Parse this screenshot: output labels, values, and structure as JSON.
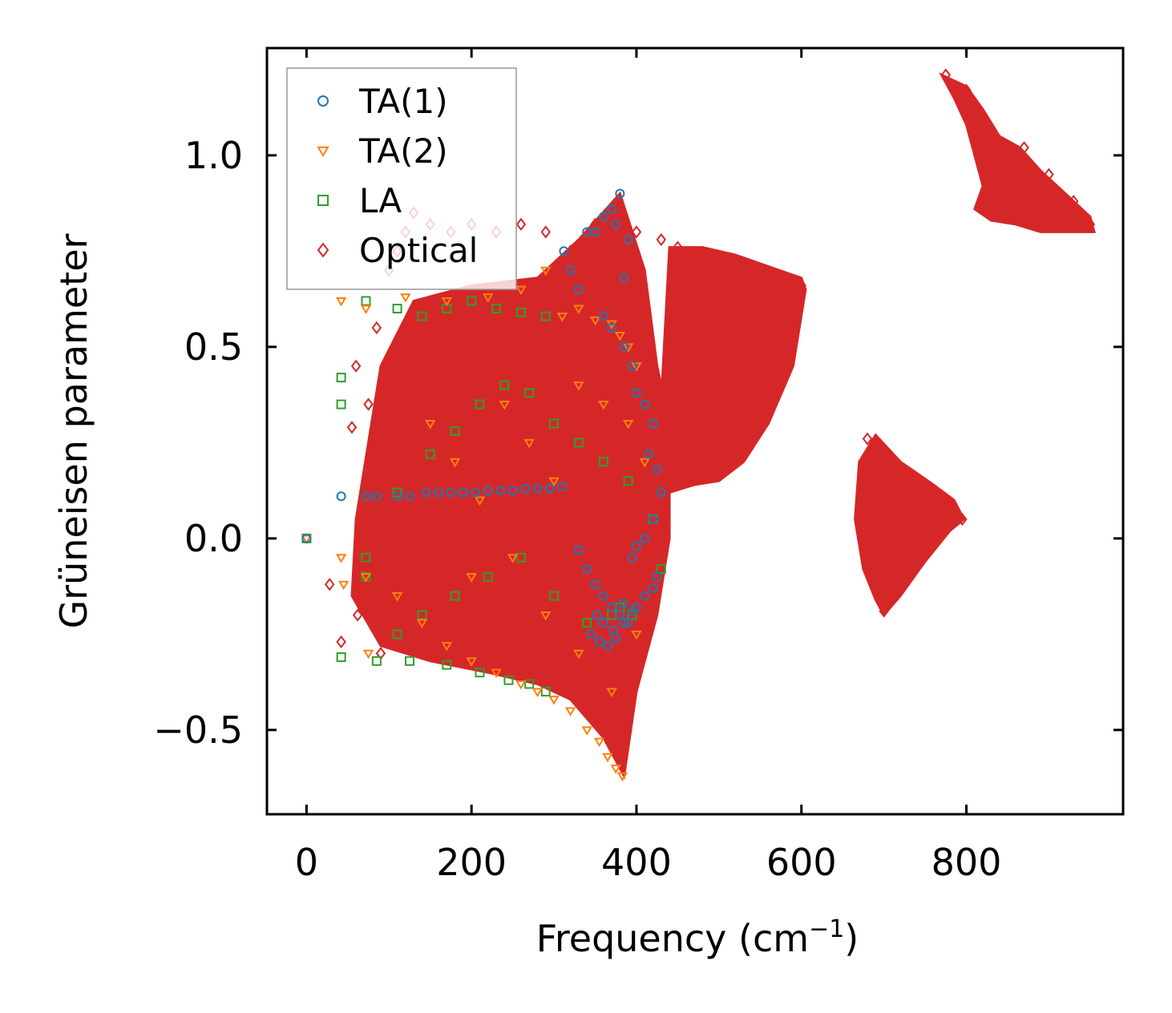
{
  "chart_data": {
    "type": "scatter",
    "xlabel": "Frequency (cm",
    "xlabel_sup": "−1",
    "xlabel_suffix": ")",
    "ylabel": "Grüneisen parameter",
    "xlim": [
      -48,
      990
    ],
    "ylim": [
      -0.72,
      1.28
    ],
    "xticks": [
      0,
      200,
      400,
      600,
      800
    ],
    "xtick_labels": [
      "0",
      "200",
      "400",
      "600",
      "800"
    ],
    "yticks": [
      -0.5,
      0.0,
      0.5,
      1.0
    ],
    "ytick_labels": [
      "−0.5",
      "0.0",
      "0.5",
      "1.0"
    ],
    "legend_position": "upper-left",
    "series": [
      {
        "name": "TA(1)",
        "marker": "circle",
        "color": "#1f77b4",
        "points": [
          [
            0,
            0.0
          ],
          [
            42,
            0.11
          ],
          [
            72,
            0.11
          ],
          [
            85,
            0.11
          ],
          [
            110,
            0.11
          ],
          [
            125,
            0.11
          ],
          [
            145,
            0.12
          ],
          [
            160,
            0.12
          ],
          [
            175,
            0.12
          ],
          [
            190,
            0.12
          ],
          [
            205,
            0.12
          ],
          [
            220,
            0.125
          ],
          [
            235,
            0.125
          ],
          [
            250,
            0.125
          ],
          [
            265,
            0.13
          ],
          [
            280,
            0.13
          ],
          [
            295,
            0.13
          ],
          [
            310,
            0.135
          ],
          [
            312,
            0.75
          ],
          [
            320,
            0.7
          ],
          [
            330,
            0.65
          ],
          [
            340,
            0.8
          ],
          [
            350,
            0.8
          ],
          [
            360,
            0.84
          ],
          [
            370,
            0.86
          ],
          [
            380,
            0.9
          ],
          [
            375,
            0.82
          ],
          [
            390,
            0.78
          ],
          [
            385,
            0.68
          ],
          [
            360,
            0.58
          ],
          [
            370,
            0.55
          ],
          [
            385,
            0.5
          ],
          [
            395,
            0.45
          ],
          [
            400,
            0.38
          ],
          [
            410,
            0.35
          ],
          [
            420,
            0.3
          ],
          [
            415,
            0.22
          ],
          [
            425,
            0.18
          ],
          [
            430,
            0.12
          ],
          [
            420,
            0.05
          ],
          [
            410,
            0.0
          ],
          [
            400,
            -0.02
          ],
          [
            395,
            -0.05
          ],
          [
            330,
            -0.03
          ],
          [
            340,
            -0.08
          ],
          [
            350,
            -0.12
          ],
          [
            360,
            -0.15
          ],
          [
            370,
            -0.18
          ],
          [
            380,
            -0.2
          ],
          [
            390,
            -0.22
          ],
          [
            400,
            -0.18
          ],
          [
            410,
            -0.15
          ],
          [
            425,
            -0.1
          ],
          [
            420,
            -0.13
          ],
          [
            345,
            -0.25
          ],
          [
            355,
            -0.27
          ],
          [
            365,
            -0.28
          ],
          [
            375,
            -0.26
          ],
          [
            385,
            -0.22
          ],
          [
            395,
            -0.19
          ],
          [
            360,
            -0.22
          ],
          [
            372,
            -0.24
          ],
          [
            384,
            -0.17
          ],
          [
            352,
            -0.2
          ]
        ]
      },
      {
        "name": "TA(2)",
        "marker": "triangle-down",
        "color": "#ff7f0e",
        "points": [
          [
            0,
            0.0
          ],
          [
            42,
            0.62
          ],
          [
            72,
            0.6
          ],
          [
            120,
            0.63
          ],
          [
            170,
            0.62
          ],
          [
            220,
            0.63
          ],
          [
            260,
            0.65
          ],
          [
            290,
            0.7
          ],
          [
            310,
            0.58
          ],
          [
            330,
            0.6
          ],
          [
            350,
            0.57
          ],
          [
            370,
            0.56
          ],
          [
            380,
            0.53
          ],
          [
            390,
            0.5
          ],
          [
            400,
            0.45
          ],
          [
            42,
            -0.05
          ],
          [
            72,
            -0.1
          ],
          [
            110,
            -0.15
          ],
          [
            140,
            -0.22
          ],
          [
            170,
            -0.28
          ],
          [
            200,
            -0.32
          ],
          [
            230,
            -0.35
          ],
          [
            260,
            -0.38
          ],
          [
            280,
            -0.4
          ],
          [
            300,
            -0.42
          ],
          [
            320,
            -0.45
          ],
          [
            340,
            -0.5
          ],
          [
            355,
            -0.53
          ],
          [
            365,
            -0.57
          ],
          [
            375,
            -0.6
          ],
          [
            383,
            -0.62
          ],
          [
            75,
            -0.3
          ],
          [
            45,
            -0.12
          ],
          [
            150,
            0.3
          ],
          [
            180,
            0.2
          ],
          [
            210,
            0.1
          ],
          [
            240,
            0.35
          ],
          [
            270,
            0.25
          ],
          [
            300,
            0.15
          ],
          [
            330,
            0.4
          ],
          [
            360,
            0.35
          ],
          [
            390,
            0.3
          ],
          [
            410,
            0.2
          ],
          [
            200,
            -0.1
          ],
          [
            250,
            -0.05
          ],
          [
            290,
            -0.2
          ],
          [
            330,
            -0.3
          ],
          [
            370,
            -0.4
          ],
          [
            400,
            -0.25
          ]
        ]
      },
      {
        "name": "LA",
        "marker": "square",
        "color": "#2ca02c",
        "points": [
          [
            0,
            0.0
          ],
          [
            42,
            0.42
          ],
          [
            42,
            0.35
          ],
          [
            72,
            0.62
          ],
          [
            110,
            0.6
          ],
          [
            140,
            0.58
          ],
          [
            170,
            0.6
          ],
          [
            200,
            0.62
          ],
          [
            230,
            0.6
          ],
          [
            260,
            0.59
          ],
          [
            290,
            0.58
          ],
          [
            42,
            -0.31
          ],
          [
            85,
            -0.32
          ],
          [
            125,
            -0.32
          ],
          [
            170,
            -0.33
          ],
          [
            210,
            -0.35
          ],
          [
            245,
            -0.37
          ],
          [
            270,
            -0.38
          ],
          [
            290,
            -0.4
          ],
          [
            72,
            -0.05
          ],
          [
            72,
            -0.1
          ],
          [
            110,
            0.12
          ],
          [
            150,
            0.22
          ],
          [
            180,
            0.28
          ],
          [
            210,
            0.35
          ],
          [
            240,
            0.4
          ],
          [
            270,
            0.38
          ],
          [
            300,
            0.3
          ],
          [
            330,
            0.25
          ],
          [
            360,
            0.2
          ],
          [
            390,
            0.15
          ],
          [
            420,
            0.05
          ],
          [
            430,
            -0.08
          ],
          [
            110,
            -0.25
          ],
          [
            140,
            -0.2
          ],
          [
            180,
            -0.15
          ],
          [
            220,
            -0.1
          ],
          [
            260,
            -0.05
          ],
          [
            300,
            -0.15
          ],
          [
            340,
            -0.22
          ],
          [
            370,
            -0.2
          ],
          [
            380,
            -0.18
          ],
          [
            395,
            -0.2
          ]
        ]
      },
      {
        "name": "Optical",
        "marker": "diamond",
        "color": "#d62728",
        "points": [
          [
            28,
            -0.12
          ],
          [
            42,
            -0.27
          ],
          [
            55,
            0.29
          ],
          [
            60,
            0.45
          ],
          [
            62,
            -0.2
          ],
          [
            75,
            0.35
          ],
          [
            85,
            0.55
          ],
          [
            90,
            -0.3
          ],
          [
            100,
            0.7
          ],
          [
            110,
            0.75
          ],
          [
            120,
            0.8
          ],
          [
            130,
            0.85
          ],
          [
            150,
            0.82
          ],
          [
            175,
            0.8
          ],
          [
            200,
            0.82
          ],
          [
            230,
            0.8
          ],
          [
            260,
            0.82
          ],
          [
            290,
            0.8
          ],
          [
            320,
            0.75
          ],
          [
            350,
            0.82
          ],
          [
            380,
            0.85
          ],
          [
            400,
            0.8
          ],
          [
            430,
            0.78
          ],
          [
            450,
            0.76
          ],
          [
            470,
            0.74
          ],
          [
            500,
            0.72
          ],
          [
            530,
            0.7
          ],
          [
            560,
            0.68
          ],
          [
            590,
            0.67
          ],
          [
            600,
            0.66
          ],
          [
            775,
            1.21
          ],
          [
            800,
            1.17
          ],
          [
            820,
            1.1
          ],
          [
            850,
            1.02
          ],
          [
            870,
            1.02
          ],
          [
            900,
            0.95
          ],
          [
            930,
            0.88
          ],
          [
            950,
            0.82
          ],
          [
            700,
            -0.19
          ],
          [
            680,
            0.26
          ],
          [
            760,
            0.12
          ],
          [
            795,
            0.05
          ]
        ]
      }
    ],
    "dense_regions": [
      {
        "name": "optical-cluster-main",
        "color": "#d62728",
        "polygon": [
          [
            60,
            0.05
          ],
          [
            90,
            0.45
          ],
          [
            130,
            0.62
          ],
          [
            200,
            0.66
          ],
          [
            280,
            0.68
          ],
          [
            330,
            0.78
          ],
          [
            380,
            0.9
          ],
          [
            410,
            0.7
          ],
          [
            425,
            0.45
          ],
          [
            440,
            0.3
          ],
          [
            440,
            0.0
          ],
          [
            425,
            -0.2
          ],
          [
            400,
            -0.4
          ],
          [
            385,
            -0.62
          ],
          [
            360,
            -0.52
          ],
          [
            320,
            -0.42
          ],
          [
            280,
            -0.38
          ],
          [
            220,
            -0.35
          ],
          [
            150,
            -0.32
          ],
          [
            90,
            -0.28
          ],
          [
            55,
            -0.15
          ]
        ]
      },
      {
        "name": "optical-fan",
        "color": "#d62728",
        "polygon": [
          [
            430,
            0.36
          ],
          [
            440,
            0.76
          ],
          [
            480,
            0.76
          ],
          [
            520,
            0.74
          ],
          [
            560,
            0.71
          ],
          [
            600,
            0.68
          ],
          [
            605,
            0.65
          ],
          [
            590,
            0.45
          ],
          [
            560,
            0.3
          ],
          [
            530,
            0.2
          ],
          [
            500,
            0.15
          ],
          [
            470,
            0.14
          ],
          [
            440,
            0.12
          ]
        ]
      },
      {
        "name": "optical-band-680-800",
        "color": "#d62728",
        "polygon": [
          [
            670,
            0.2
          ],
          [
            690,
            0.27
          ],
          [
            720,
            0.2
          ],
          [
            760,
            0.14
          ],
          [
            785,
            0.1
          ],
          [
            797,
            0.05
          ],
          [
            780,
            0.02
          ],
          [
            750,
            -0.06
          ],
          [
            720,
            -0.15
          ],
          [
            700,
            -0.2
          ],
          [
            690,
            -0.16
          ],
          [
            675,
            -0.08
          ],
          [
            665,
            0.05
          ]
        ]
      },
      {
        "name": "optical-band-770-950",
        "color": "#d62728",
        "polygon": [
          [
            770,
            1.21
          ],
          [
            800,
            1.18
          ],
          [
            820,
            1.12
          ],
          [
            840,
            1.05
          ],
          [
            865,
            1.02
          ],
          [
            890,
            0.96
          ],
          [
            920,
            0.9
          ],
          [
            950,
            0.84
          ],
          [
            955,
            0.8
          ],
          [
            920,
            0.8
          ],
          [
            890,
            0.8
          ],
          [
            860,
            0.82
          ],
          [
            830,
            0.83
          ],
          [
            810,
            0.86
          ],
          [
            820,
            0.92
          ],
          [
            810,
            1.0
          ],
          [
            800,
            1.08
          ],
          [
            785,
            1.15
          ]
        ]
      }
    ]
  }
}
